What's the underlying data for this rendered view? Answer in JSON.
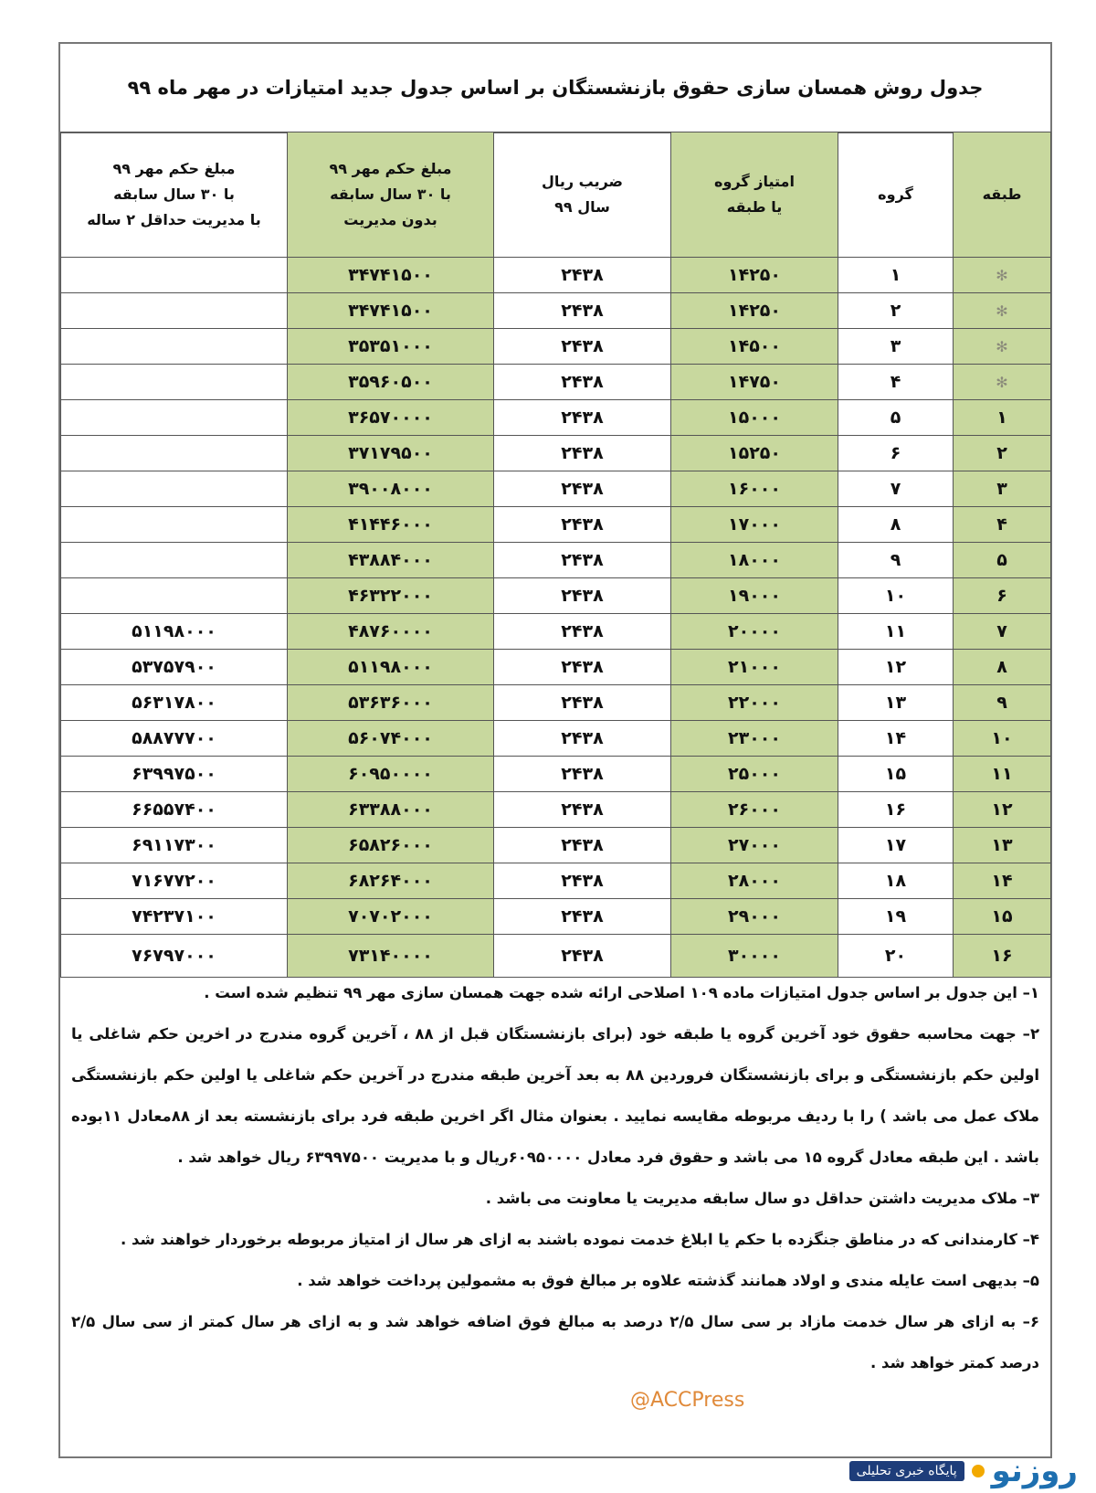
{
  "title": "جدول  روش همسان سازی حقوق بازنشستگان بر اساس جدول جدید امتیازات  در مهر ماه  ۹۹",
  "colors": {
    "highlight": "#c8d89e",
    "watermark": "#e08a3a",
    "logo": "#1e6fb0"
  },
  "headers": [
    "طبقه",
    "گروه",
    "امتیاز گروه\nیا طبقه",
    "ضریب ریال\nسال ۹۹",
    "مبلغ حکم مهر ۹۹\nبا ۳۰ سال سابقه\nبدون مدیریت",
    "مبلغ حکم مهر ۹۹\nبا ۳۰ سال سابقه\nبا مدیریت حداقل ۲ ساله"
  ],
  "rows": [
    [
      "✻",
      "۱",
      "۱۴۲۵۰",
      "۲۴۳۸",
      "۳۴۷۴۱۵۰۰",
      ""
    ],
    [
      "✻",
      "۲",
      "۱۴۲۵۰",
      "۲۴۳۸",
      "۳۴۷۴۱۵۰۰",
      ""
    ],
    [
      "✻",
      "۳",
      "۱۴۵۰۰",
      "۲۴۳۸",
      "۳۵۳۵۱۰۰۰",
      ""
    ],
    [
      "✻",
      "۴",
      "۱۴۷۵۰",
      "۲۴۳۸",
      "۳۵۹۶۰۵۰۰",
      ""
    ],
    [
      "۱",
      "۵",
      "۱۵۰۰۰",
      "۲۴۳۸",
      "۳۶۵۷۰۰۰۰",
      ""
    ],
    [
      "۲",
      "۶",
      "۱۵۲۵۰",
      "۲۴۳۸",
      "۳۷۱۷۹۵۰۰",
      ""
    ],
    [
      "۳",
      "۷",
      "۱۶۰۰۰",
      "۲۴۳۸",
      "۳۹۰۰۸۰۰۰",
      ""
    ],
    [
      "۴",
      "۸",
      "۱۷۰۰۰",
      "۲۴۳۸",
      "۴۱۴۴۶۰۰۰",
      ""
    ],
    [
      "۵",
      "۹",
      "۱۸۰۰۰",
      "۲۴۳۸",
      "۴۳۸۸۴۰۰۰",
      ""
    ],
    [
      "۶",
      "۱۰",
      "۱۹۰۰۰",
      "۲۴۳۸",
      "۴۶۳۲۲۰۰۰",
      ""
    ],
    [
      "۷",
      "۱۱",
      "۲۰۰۰۰",
      "۲۴۳۸",
      "۴۸۷۶۰۰۰۰",
      "۵۱۱۹۸۰۰۰"
    ],
    [
      "۸",
      "۱۲",
      "۲۱۰۰۰",
      "۲۴۳۸",
      "۵۱۱۹۸۰۰۰",
      "۵۳۷۵۷۹۰۰"
    ],
    [
      "۹",
      "۱۳",
      "۲۲۰۰۰",
      "۲۴۳۸",
      "۵۳۶۳۶۰۰۰",
      "۵۶۳۱۷۸۰۰"
    ],
    [
      "۱۰",
      "۱۴",
      "۲۳۰۰۰",
      "۲۴۳۸",
      "۵۶۰۷۴۰۰۰",
      "۵۸۸۷۷۷۰۰"
    ],
    [
      "۱۱",
      "۱۵",
      "۲۵۰۰۰",
      "۲۴۳۸",
      "۶۰۹۵۰۰۰۰",
      "۶۳۹۹۷۵۰۰"
    ],
    [
      "۱۲",
      "۱۶",
      "۲۶۰۰۰",
      "۲۴۳۸",
      "۶۳۳۸۸۰۰۰",
      "۶۶۵۵۷۴۰۰"
    ],
    [
      "۱۳",
      "۱۷",
      "۲۷۰۰۰",
      "۲۴۳۸",
      "۶۵۸۲۶۰۰۰",
      "۶۹۱۱۷۳۰۰"
    ],
    [
      "۱۴",
      "۱۸",
      "۲۸۰۰۰",
      "۲۴۳۸",
      "۶۸۲۶۴۰۰۰",
      "۷۱۶۷۷۲۰۰"
    ],
    [
      "۱۵",
      "۱۹",
      "۲۹۰۰۰",
      "۲۴۳۸",
      "۷۰۷۰۲۰۰۰",
      "۷۴۲۳۷۱۰۰"
    ],
    [
      "۱۶",
      "۲۰",
      "۳۰۰۰۰",
      "۲۴۳۸",
      "۷۳۱۴۰۰۰۰",
      "۷۶۷۹۷۰۰۰"
    ]
  ],
  "notes": [
    "۱– این جدول بر اساس جدول امتیازات ماده ۱۰۹ اصلاحی ارائه شده جهت همسان سازی مهر ۹۹ تنظیم شده است .",
    "۲– جهت محاسبه حقوق خود آخرین گروه یا طبقه خود (برای بازنشستگان قبل از ۸۸ ، آخرین گروه مندرج در اخرین حکم شاغلی یا اولین حکم بازنشستگی و برای بازنشستگان فروردین ۸۸ به بعد آخرین طبقه مندرج در آخرین حکم شاغلی یا اولین حکم بازنشستگی ملاک عمل می باشد ) را با ردیف مربوطه مقایسه نمایید . بعنوان مثال اگر اخرین طبقه فرد برای بازنشسته بعد از ۸۸معادل ۱۱بوده باشد . این طبقه معادل گروه ۱۵ می باشد و حقوق فرد معادل ۶۰۹۵۰۰۰۰ریال و با مدیریت ۶۳۹۹۷۵۰۰ ریال خواهد شد .",
    "۳– ملاک مدیریت داشتن حداقل دو سال سابقه مدیریت یا معاونت می باشد .",
    "۴– کارمندانی که در مناطق جنگزده با حکم یا ابلاغ خدمت نموده باشند به ازای هر سال از امتیاز مربوطه برخوردار خواهند شد .",
    "۵– بدیهی است عایله مندی و اولاد همانند گذشته علاوه بر مبالغ فوق به مشمولین پرداخت خواهد شد .",
    "۶– به ازای هر سال خدمت مازاد بر سی سال ۲/۵ درصد به مبالغ فوق اضافه خواهد شد و به ازای هر سال کمتر از سی سال ۲/۵ درصد کمتر خواهد شد ."
  ],
  "watermark": "@ACCPress",
  "logo": {
    "mark": "روزنو",
    "subtitle": "پایگاه خبری تحلیلی"
  }
}
